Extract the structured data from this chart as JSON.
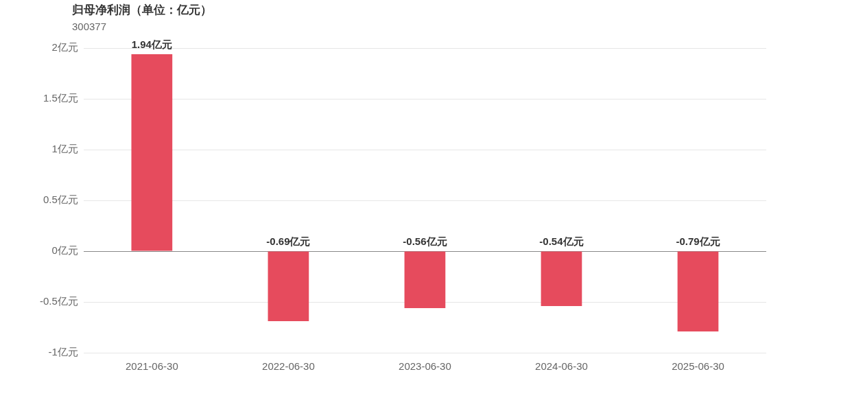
{
  "chart_data": {
    "type": "bar",
    "title": "归母净利润（单位：亿元）",
    "subtitle": "300377",
    "categories": [
      "2021-06-30",
      "2022-06-30",
      "2023-06-30",
      "2024-06-30",
      "2025-06-30"
    ],
    "values": [
      1.94,
      -0.69,
      -0.56,
      -0.54,
      -0.79
    ],
    "color": "#e64b5d",
    "value_labels": [
      "1.94亿元",
      "-0.69亿元",
      "-0.56亿元",
      "-0.54亿元",
      "-0.79亿元"
    ],
    "ylim": [
      -1,
      2
    ],
    "yticks": [
      {
        "value": -1,
        "label": "-1亿元"
      },
      {
        "value": -0.5,
        "label": "-0.5亿元"
      },
      {
        "value": 0,
        "label": "0亿元"
      },
      {
        "value": 0.5,
        "label": "0.5亿元"
      },
      {
        "value": 1,
        "label": "1亿元"
      },
      {
        "value": 1.5,
        "label": "1.5亿元"
      },
      {
        "value": 2,
        "label": "2亿元"
      }
    ],
    "grid": "y",
    "legend": false
  }
}
